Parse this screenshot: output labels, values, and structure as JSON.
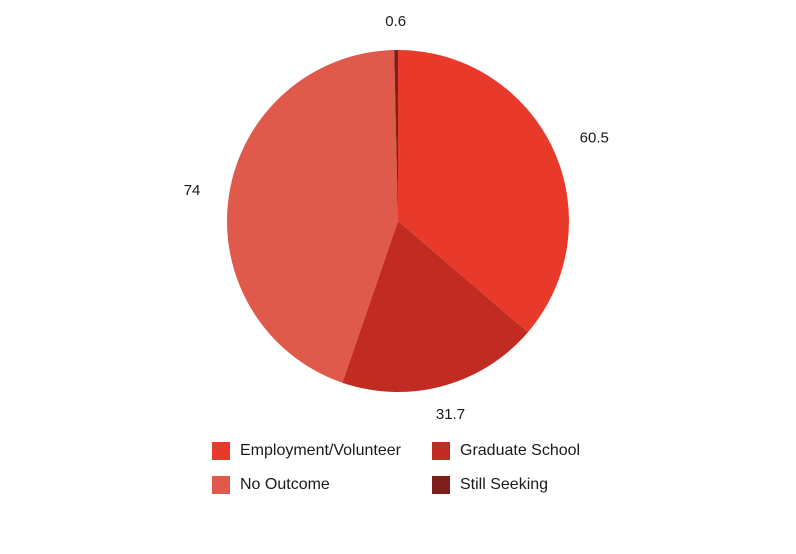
{
  "chart_data": {
    "type": "pie",
    "title": "",
    "categories": [
      "Employment/Volunteer",
      "Graduate School",
      "No Outcome",
      "Still Seeking"
    ],
    "values": [
      60.5,
      31.7,
      74,
      0.6
    ],
    "labels": [
      "60.5",
      "31.7",
      "74",
      "0.6"
    ],
    "colors": [
      "#e8392b",
      "#c12b22",
      "#df5a4b",
      "#7e1f1b"
    ],
    "legend_position": "bottom",
    "start_angle_deg": 0,
    "direction": "clockwise"
  },
  "legend": {
    "items": [
      {
        "label": "Employment/Volunteer",
        "color": "#e8392b"
      },
      {
        "label": "Graduate School",
        "color": "#c12b22"
      },
      {
        "label": "No Outcome",
        "color": "#df5a4b"
      },
      {
        "label": "Still Seeking",
        "color": "#7e1f1b"
      }
    ]
  }
}
